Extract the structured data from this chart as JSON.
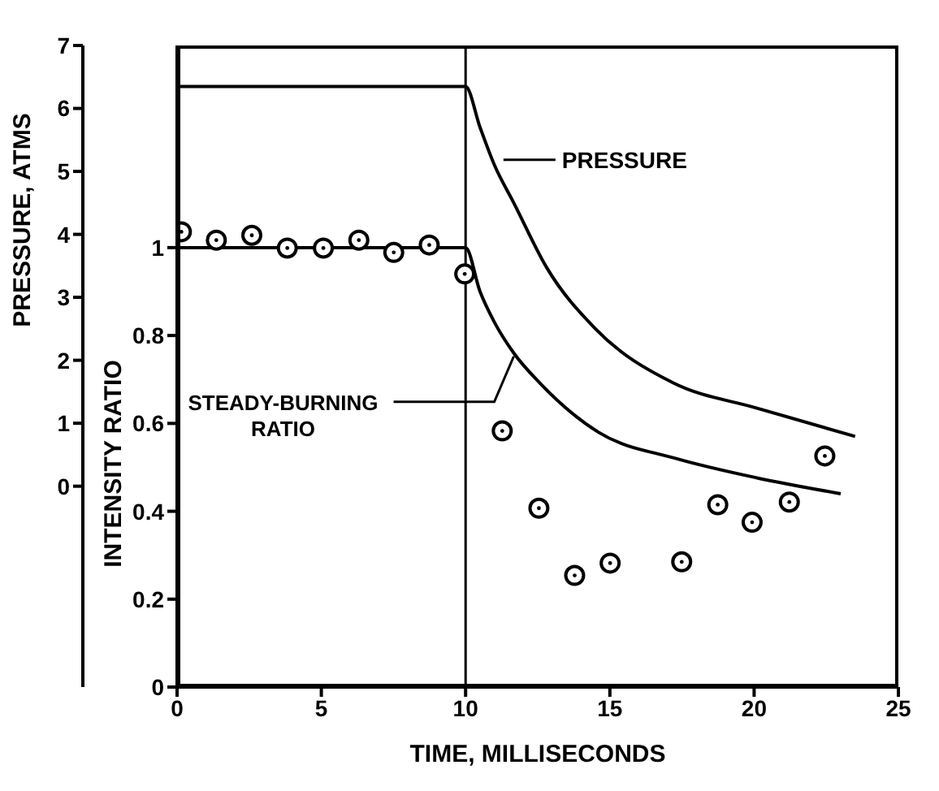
{
  "chart_data": {
    "type": "line",
    "xlabel": "TIME, MILLISECONDS",
    "ylabel": "INTENSITY RATIO",
    "y2label": "PRESSURE, ATMS",
    "xlim": [
      0,
      25
    ],
    "xticks": [
      0,
      5,
      10,
      15,
      20,
      25
    ],
    "ylim": [
      0,
      1.46
    ],
    "yticks": [
      0,
      0.2,
      0.4,
      0.6,
      0.8,
      1.0
    ],
    "y2lim": [
      -3.19,
      7
    ],
    "y2ticks": [
      0,
      1,
      2,
      3,
      4,
      5,
      6,
      7
    ],
    "series": [
      {
        "color": "#000000",
        "marker": "none",
        "x": [
          0,
          10,
          10.5,
          11,
          11.67,
          12.6,
          14.6,
          17.3,
          20.1,
          23
        ],
        "values": [
          1.0,
          1.0,
          0.9,
          0.83,
          0.76,
          0.69,
          0.58,
          0.52,
          0.476,
          0.44
        ]
      },
      {
        "axis": "y2",
        "color": "#000000",
        "marker": "none",
        "x": [
          0,
          10,
          10.5,
          11,
          11.67,
          12.8,
          14.5,
          17.2,
          20.1,
          23.5
        ],
        "values": [
          6.35,
          6.35,
          5.7,
          5.1,
          4.5,
          3.48,
          2.5,
          1.64,
          1.24,
          0.79
        ]
      },
      {
        "type": "scatter",
        "color": "#000000",
        "marker": "circle",
        "x": [
          0.15,
          1.36,
          2.59,
          3.82,
          5.07,
          6.3,
          7.51,
          8.74,
          9.97,
          11.27,
          12.54,
          13.78,
          15.01,
          17.49,
          18.74,
          19.93,
          21.22,
          22.45
        ],
        "values": [
          1.036,
          1.017,
          1.028,
          0.999,
          0.999,
          1.017,
          0.989,
          1.006,
          0.94,
          0.583,
          0.407,
          0.254,
          0.282,
          0.285,
          0.415,
          0.375,
          0.421,
          0.526
        ]
      }
    ],
    "ref_lines": [
      {
        "axis": "x",
        "value": 10,
        "color": "#000000"
      }
    ],
    "annotations": [
      {
        "text": "PRESSURE",
        "x": 11.2,
        "y": 1.2
      },
      {
        "text": "STEADY-BURNING RATIO",
        "x": 11.67,
        "y": 0.76
      }
    ]
  }
}
